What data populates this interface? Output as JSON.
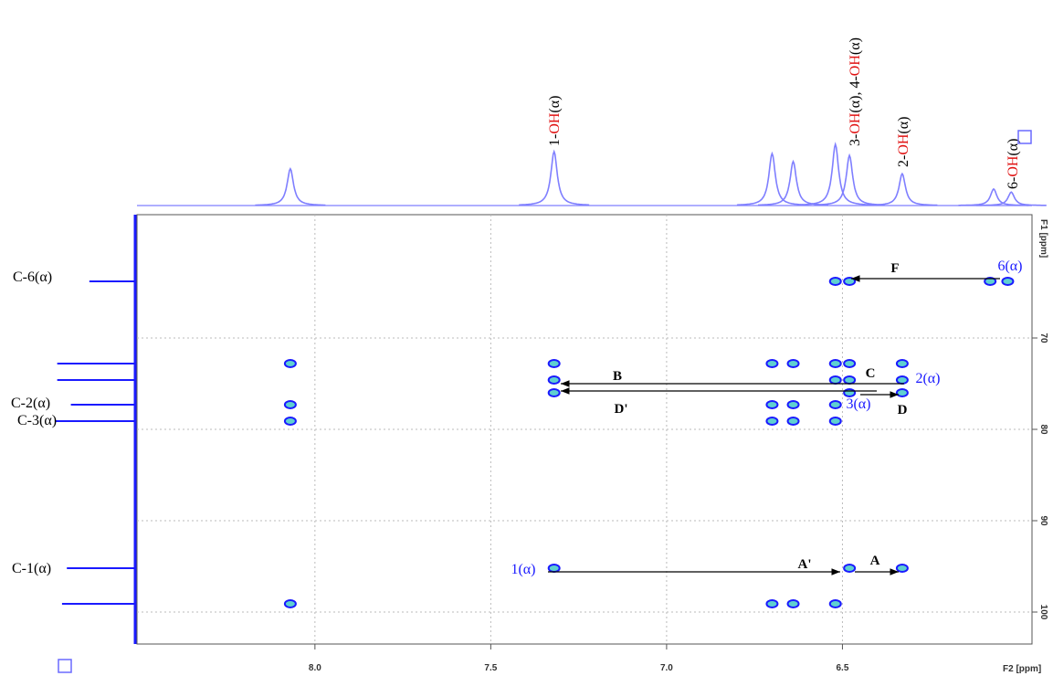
{
  "chart_data": {
    "type": "scatter",
    "x_label": "F2 [ppm]",
    "y_label": "F1 [ppm]",
    "xlim": [
      8.506,
      5.961
    ],
    "ylim": [
      103.5,
      56.5
    ],
    "xticks": [
      {
        "value": 8,
        "label": "8.0"
      },
      7.5,
      {
        "value": 7,
        "label": "7.0"
      },
      6.5
    ],
    "yticks": [
      70,
      80,
      90,
      100
    ],
    "grid": true,
    "color": "#1a1aff",
    "x": [
      8.07,
      8.07,
      8.07,
      8.07,
      7.32,
      7.32,
      7.32,
      7.32,
      6.7,
      6.7,
      6.7,
      6.7,
      6.64,
      6.64,
      6.64,
      6.64,
      6.52,
      6.52,
      6.52,
      6.52,
      6.52,
      6.52,
      6.48,
      6.48,
      6.48,
      6.48,
      6.48,
      6.33,
      6.33,
      6.33,
      6.33,
      6.08,
      6.03
    ],
    "values": [
      72.8,
      77.3,
      79.1,
      99.1,
      72.8,
      74.6,
      76.0,
      95.2,
      72.8,
      77.3,
      79.1,
      99.1,
      72.8,
      77.3,
      79.1,
      99.1,
      63.8,
      72.8,
      74.6,
      77.3,
      79.1,
      99.1,
      63.8,
      72.8,
      74.6,
      76.0,
      95.2,
      72.8,
      74.6,
      76.0,
      95.2,
      63.8,
      63.8
    ],
    "projection_f2": {
      "x": [
        8.07,
        7.32,
        6.7,
        6.64,
        6.52,
        6.48,
        6.33,
        6.07,
        6.02
      ],
      "intensity": [
        60,
        88,
        85,
        72,
        100,
        82,
        52,
        27,
        22
      ],
      "color": "#7f7fff"
    },
    "projection_f1": {
      "y": [
        63.8,
        72.8,
        74.6,
        77.3,
        79.1,
        95.2,
        99.1
      ],
      "intensity": [
        57,
        97,
        97,
        80,
        100,
        85,
        91
      ],
      "color": "#1a1aff"
    },
    "peak_labels": [
      [
        "1-",
        "OH",
        "(α)"
      ],
      [
        "3-",
        "OH",
        "(α), 4-",
        "OH",
        "(α)"
      ],
      [
        "2-",
        "OH",
        "(α)"
      ],
      [
        "6-",
        "OH",
        "(α)"
      ]
    ],
    "carbon_labels": [
      "C-6(α)",
      "C-2(α)",
      "C-3(α)",
      "C-1(α)"
    ],
    "annotations": [
      "F",
      "6(α)",
      "B",
      "C",
      "2(α)",
      "D'",
      "3(α)",
      "D",
      "1(α)",
      "A'",
      "A"
    ]
  }
}
